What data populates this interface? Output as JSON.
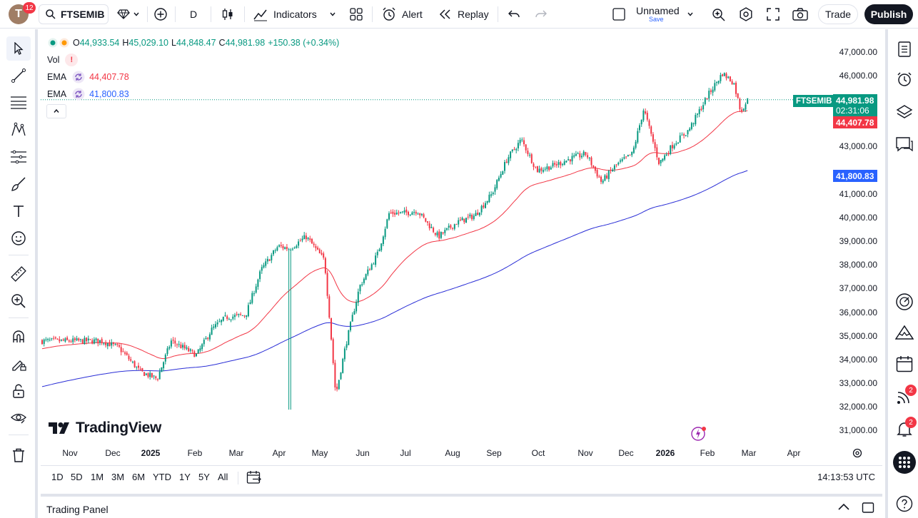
{
  "header": {
    "avatar_letter": "T",
    "notification_count": "12",
    "symbol": "FTSEMIB",
    "interval": "D",
    "indicators_label": "Indicators",
    "alert_label": "Alert",
    "replay_label": "Replay",
    "layout_name": "Unnamed",
    "layout_save": "Save",
    "trade_label": "Trade",
    "publish_label": "Publish"
  },
  "legend": {
    "interval": "D",
    "open_key": "O",
    "open": "44,933.54",
    "high_key": "H",
    "high": "45,029.10",
    "low_key": "L",
    "low": "44,848.47",
    "close_key": "C",
    "close": "44,981.98",
    "change": "+150.38 (+0.34%)",
    "vol_label": "Vol",
    "vol_warning": "!",
    "ema1_label": "EMA",
    "ema1_value": "44,407.78",
    "ema2_label": "EMA",
    "ema2_value": "41,800.83"
  },
  "price_axis": [
    "47,000.00",
    "46,000.00",
    "43,000.00",
    "41,000.00",
    "40,000.00",
    "39,000.00",
    "38,000.00",
    "37,000.00",
    "36,000.00",
    "35,000.00",
    "34,000.00",
    "33,000.00",
    "32,000.00",
    "31,000.00"
  ],
  "price_tags": {
    "symbol": "FTSEMIB",
    "last_price": "44,981.98",
    "countdown": "02:31:06",
    "ema1": "44,407.78",
    "ema2": "41,800.83"
  },
  "time_axis": [
    "Nov",
    "Dec",
    "2025",
    "Feb",
    "Mar",
    "Apr",
    "May",
    "Jun",
    "Jul",
    "Aug",
    "Sep",
    "Oct",
    "Nov",
    "Dec",
    "2026",
    "Feb",
    "Mar",
    "Apr"
  ],
  "watermark": "TradingView",
  "ranges": [
    "1D",
    "5D",
    "1M",
    "3M",
    "6M",
    "YTD",
    "1Y",
    "5Y",
    "All"
  ],
  "clock": "14:13:53 UTC",
  "trading_panel": "Trading Panel",
  "right_badges": {
    "feed": "2",
    "notifications": "2"
  },
  "colors": {
    "up": "#089981",
    "down": "#f23645",
    "ema1": "#f23645",
    "ema2": "#2962ff",
    "ema2_line": "#2a2ed6"
  },
  "chart_data": {
    "type": "candlestick",
    "symbol": "FTSEMIB",
    "interval": "D",
    "x_range": [
      "Oct 2024",
      "Apr 2026"
    ],
    "ylim": [
      30700,
      47400
    ],
    "close_path": [
      [
        "2024-10-24",
        34800
      ],
      [
        "2024-11-05",
        34500
      ],
      [
        "2024-11-20",
        33500
      ],
      [
        "2024-12-02",
        33200
      ],
      [
        "2024-12-12",
        34800
      ],
      [
        "2024-12-30",
        34200
      ],
      [
        "2025-01-10",
        35300
      ],
      [
        "2025-01-20",
        35800
      ],
      [
        "2025-02-03",
        35900
      ],
      [
        "2025-02-14",
        37800
      ],
      [
        "2025-02-26",
        38800
      ],
      [
        "2025-03-06",
        38700
      ],
      [
        "2025-03-18",
        39200
      ],
      [
        "2025-03-31",
        38200
      ],
      [
        "2025-04-04",
        35500
      ],
      [
        "2025-04-08",
        32500
      ],
      [
        "2025-04-15",
        34600
      ],
      [
        "2025-04-25",
        37100
      ],
      [
        "2025-05-08",
        38500
      ],
      [
        "2025-05-16",
        40200
      ],
      [
        "2025-05-27",
        40200
      ],
      [
        "2025-06-05",
        40300
      ],
      [
        "2025-06-20",
        39200
      ],
      [
        "2025-07-03",
        39800
      ],
      [
        "2025-07-16",
        40100
      ],
      [
        "2025-07-28",
        41000
      ],
      [
        "2025-08-08",
        42500
      ],
      [
        "2025-08-18",
        43300
      ],
      [
        "2025-08-29",
        42000
      ],
      [
        "2025-09-10",
        42200
      ],
      [
        "2025-09-22",
        42500
      ],
      [
        "2025-10-03",
        42700
      ],
      [
        "2025-10-14",
        41500
      ],
      [
        "2025-10-24",
        42200
      ],
      [
        "2025-11-05",
        42700
      ],
      [
        "2025-11-13",
        44600
      ],
      [
        "2025-11-24",
        42300
      ],
      [
        "2025-12-04",
        43100
      ],
      [
        "2025-12-15",
        43700
      ],
      [
        "2025-12-29",
        45200
      ],
      [
        "2026-01-08",
        46100
      ],
      [
        "2026-01-16",
        45700
      ],
      [
        "2026-01-21",
        44500
      ],
      [
        "2026-01-26",
        44982
      ]
    ],
    "ema_fast": {
      "name": "EMA",
      "last": 44407.78
    },
    "ema_slow": {
      "name": "EMA",
      "last": 41800.83
    },
    "last": {
      "open": 44933.54,
      "high": 45029.1,
      "low": 44848.47,
      "close": 44981.98
    }
  }
}
